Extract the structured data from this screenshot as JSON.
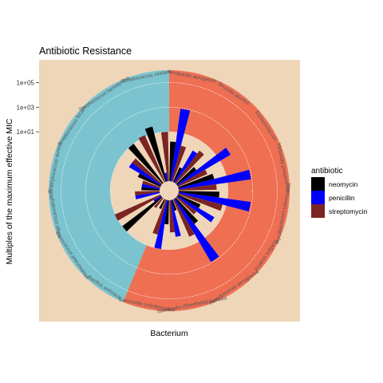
{
  "chart_data": {
    "type": "bar",
    "coord": "polar",
    "title": "Antibiotic Resistance",
    "xlabel": "Bacterium",
    "ylabel": "Multiples of the maximum effective MIC",
    "y_scale": "log10",
    "ylim": [
      0.001,
      1000000
    ],
    "y_ticks": [
      {
        "value": 10,
        "label": "1e+01"
      },
      {
        "value": 1000,
        "label": "1e+03"
      },
      {
        "value": 100000,
        "label": "1e+05"
      }
    ],
    "categories": [
      "Aerobacter aerogenes",
      "Brucella abortus",
      "Escherichia coli",
      "Klebsiella pneumoniae",
      "Mycobacterium tuberculosis",
      "Proteus vulgaris",
      "Pseudomonas aeruginosa",
      "Salmonella (Eberthella) typhosa",
      "Salmonella schottmuelleri",
      "Bacillus anthracis",
      "Diplococcus pneumoniae",
      "Staphylococcus albus",
      "Staphylococcus aureus",
      "Streptococcus fecalis",
      "Streptococcus hemolyticus",
      "Streptococcus viridans"
    ],
    "category_labels": [
      "Aerobacter aerogenes",
      "Brucella abortus",
      "Escherichia coli",
      "Klebsiella pneumoniae",
      "Mycobacterium tuberculosis",
      "Proteus vulgaris",
      "Pseudomonas aeruginosa",
      "Salmonella (Eberthella) typhosa",
      "Salmonella schottmuelleri",
      "Bacillus anthracis",
      "Diplococcus pneumoniae",
      "Staphylococcus albus",
      "Staphylococcus aureus",
      "Streptococcus fecalis",
      "Streptococcus hemolyticus",
      "Streptococcus viridans"
    ],
    "gram": [
      "negative",
      "negative",
      "negative",
      "negative",
      "negative",
      "negative",
      "negative",
      "negative",
      "negative",
      "positive",
      "positive",
      "positive",
      "positive",
      "positive",
      "positive",
      "positive"
    ],
    "series": [
      {
        "name": "neomycin",
        "color": "#000000",
        "values": [
          1.6,
          0.02,
          0.1,
          1,
          2,
          0.1,
          0.4,
          0.008,
          0.09,
          0.007,
          10,
          0.001,
          0.03,
          0.1,
          10,
          40
        ]
      },
      {
        "name": "penicillin",
        "color": "#0000ff",
        "values": [
          870,
          1,
          100,
          850,
          800,
          3,
          850,
          1,
          10,
          0.001,
          0.005,
          0.1,
          0.03,
          1,
          0.001,
          0.005
        ]
      },
      {
        "name": "streptomycin",
        "color": "#7b2424",
        "values": [
          1,
          2,
          0.4,
          1.2,
          5,
          0.1,
          2,
          0.4,
          0.8,
          0.01,
          11,
          0.1,
          0.03,
          1,
          14,
          10
        ]
      }
    ],
    "legend": {
      "title": "antibiotic",
      "position": "right"
    },
    "colors": {
      "panel_bg": "#efd6b8",
      "gram_negative": "#ef6f53",
      "gram_positive": "#7bc4cf",
      "grid": "#ffffff"
    },
    "grid": true
  }
}
